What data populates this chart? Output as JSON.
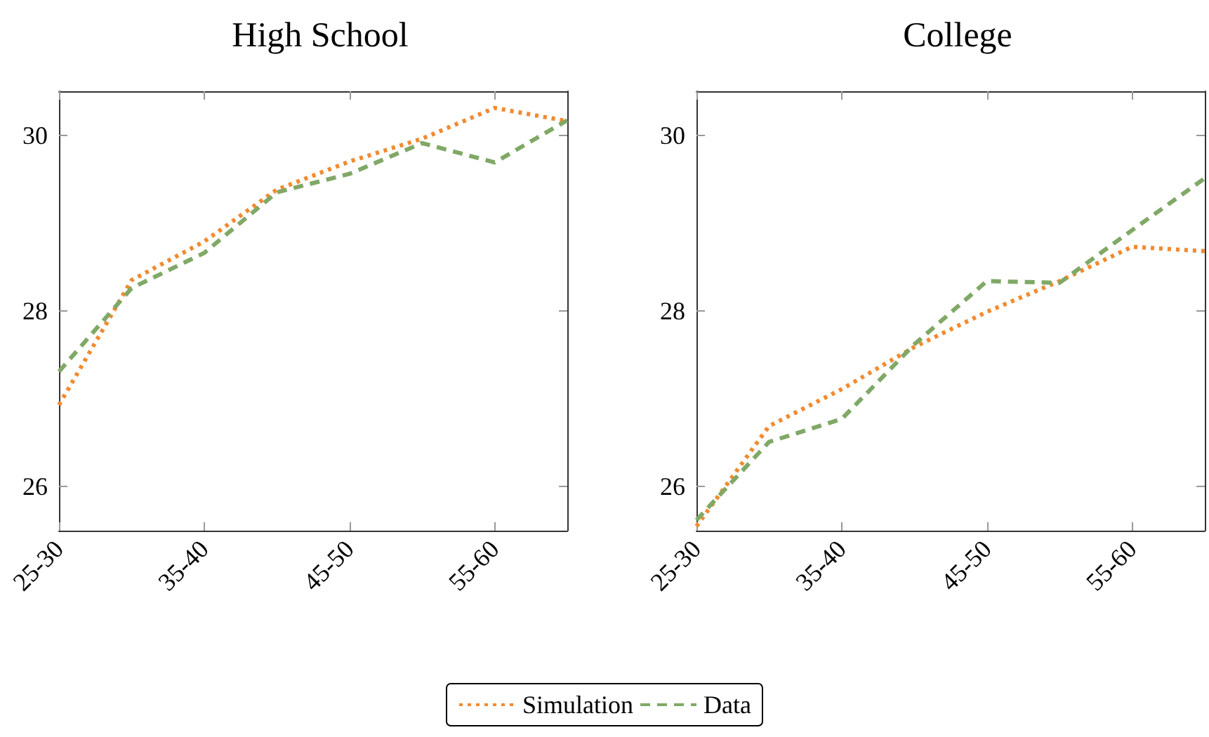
{
  "chart_data": [
    {
      "type": "line",
      "title": "High School",
      "categories": [
        "25-30",
        null,
        "35-40",
        null,
        "45-50",
        null,
        "55-60",
        null
      ],
      "ylim": [
        25.5,
        30.5
      ],
      "yticks": [
        26,
        28,
        30
      ],
      "grid": false,
      "legend": "bottom",
      "marker": "none",
      "series": [
        {
          "name": "Simulation",
          "color": "#f28a30",
          "line_style": "dotted",
          "values": [
            26.93,
            28.35,
            28.79,
            29.38,
            29.7,
            29.96,
            30.31,
            30.16
          ]
        },
        {
          "name": "Data",
          "color": "#80a866",
          "line_style": "dashed",
          "values": [
            27.31,
            28.26,
            28.66,
            29.35,
            29.56,
            29.91,
            29.69,
            30.17
          ]
        }
      ]
    },
    {
      "type": "line",
      "title": "College",
      "categories": [
        "25-30",
        null,
        "35-40",
        null,
        "45-50",
        null,
        "55-60",
        null
      ],
      "ylim": [
        25.5,
        30.5
      ],
      "yticks": [
        26,
        28,
        30
      ],
      "grid": false,
      "marker": "none",
      "series": [
        {
          "color": "#f28a30",
          "line_style": "dotted",
          "values": [
            25.55,
            26.69,
            27.11,
            27.59,
            27.99,
            28.34,
            28.73,
            28.68
          ]
        },
        {
          "color": "#80a866",
          "line_style": "dashed",
          "values": [
            25.62,
            26.51,
            26.77,
            27.62,
            28.34,
            28.32,
            28.92,
            29.51
          ]
        }
      ]
    }
  ]
}
